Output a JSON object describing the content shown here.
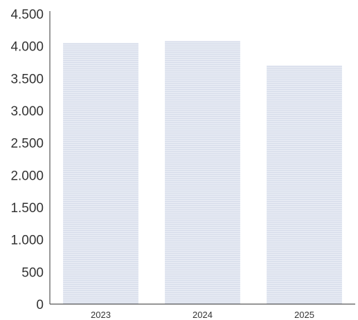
{
  "chart_data": {
    "type": "bar",
    "categories": [
      "2023",
      "2024",
      "2025"
    ],
    "values": [
      4050,
      4080,
      3700
    ],
    "ylim": [
      0,
      4500
    ],
    "yticks": [
      0,
      500,
      1000,
      1500,
      2000,
      2500,
      3000,
      3500,
      4000,
      4500
    ],
    "ytick_labels": [
      "0",
      "500",
      "1.000",
      "1.500",
      "2.000",
      "2.500",
      "3.000",
      "3.500",
      "4.000",
      "4.500"
    ],
    "grid": false,
    "legend": "none",
    "bar_color": "#e3e8f2",
    "title": "",
    "xlabel": "",
    "ylabel": ""
  }
}
